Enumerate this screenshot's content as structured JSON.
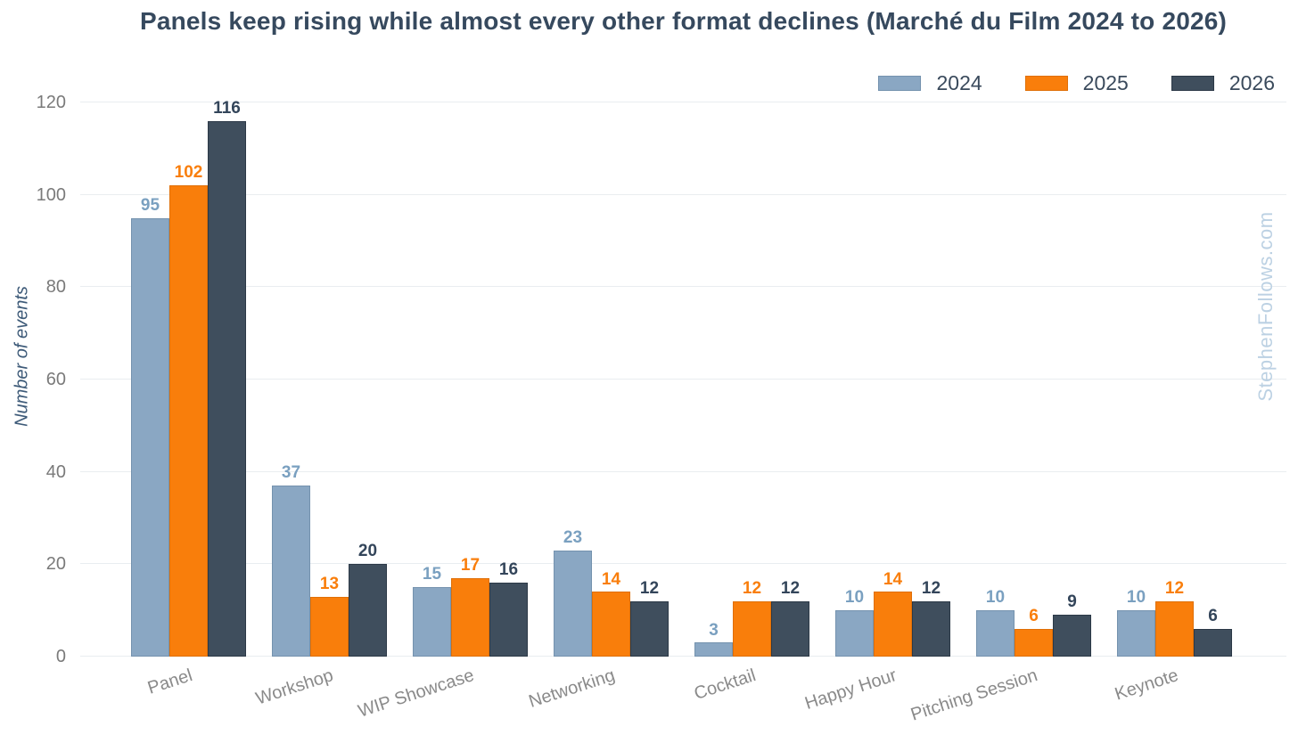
{
  "watermark": "StephenFollows.com",
  "chart_data": {
    "type": "bar",
    "title": "Panels keep rising while almost every other format declines (Marché du Film 2024 to 2026)",
    "xlabel": "",
    "ylabel": "Number of events",
    "ylim": [
      0,
      120
    ],
    "yticks": [
      0,
      20,
      40,
      60,
      80,
      100,
      120
    ],
    "grid": true,
    "legend_position": "top-right",
    "categories": [
      "Panel",
      "Workshop",
      "WIP Showcase",
      "Networking",
      "Cocktail",
      "Happy Hour",
      "Pitching Session",
      "Keynote"
    ],
    "series": [
      {
        "name": "2024",
        "color": "#8AA7C3",
        "edge_color": "#7492AE",
        "label_color": "#7AA0C0",
        "values": [
          95,
          37,
          15,
          23,
          3,
          10,
          10,
          10
        ]
      },
      {
        "name": "2025",
        "color": "#F97E0B",
        "edge_color": "#DF6F07",
        "label_color": "#F97E0B",
        "values": [
          102,
          13,
          17,
          14,
          12,
          14,
          6,
          12
        ]
      },
      {
        "name": "2026",
        "color": "#3F4E5D",
        "edge_color": "#2C3947",
        "label_color": "#33455A",
        "values": [
          116,
          20,
          16,
          12,
          12,
          12,
          9,
          6
        ]
      }
    ],
    "colors": {
      "title": "#36495E",
      "tick_label": "#7A7A7A",
      "category_label": "#8A8A8A",
      "gridline": "#E9EDF0",
      "y_axis_label": "#3D5A78",
      "watermark": "#BCD1E3"
    }
  }
}
